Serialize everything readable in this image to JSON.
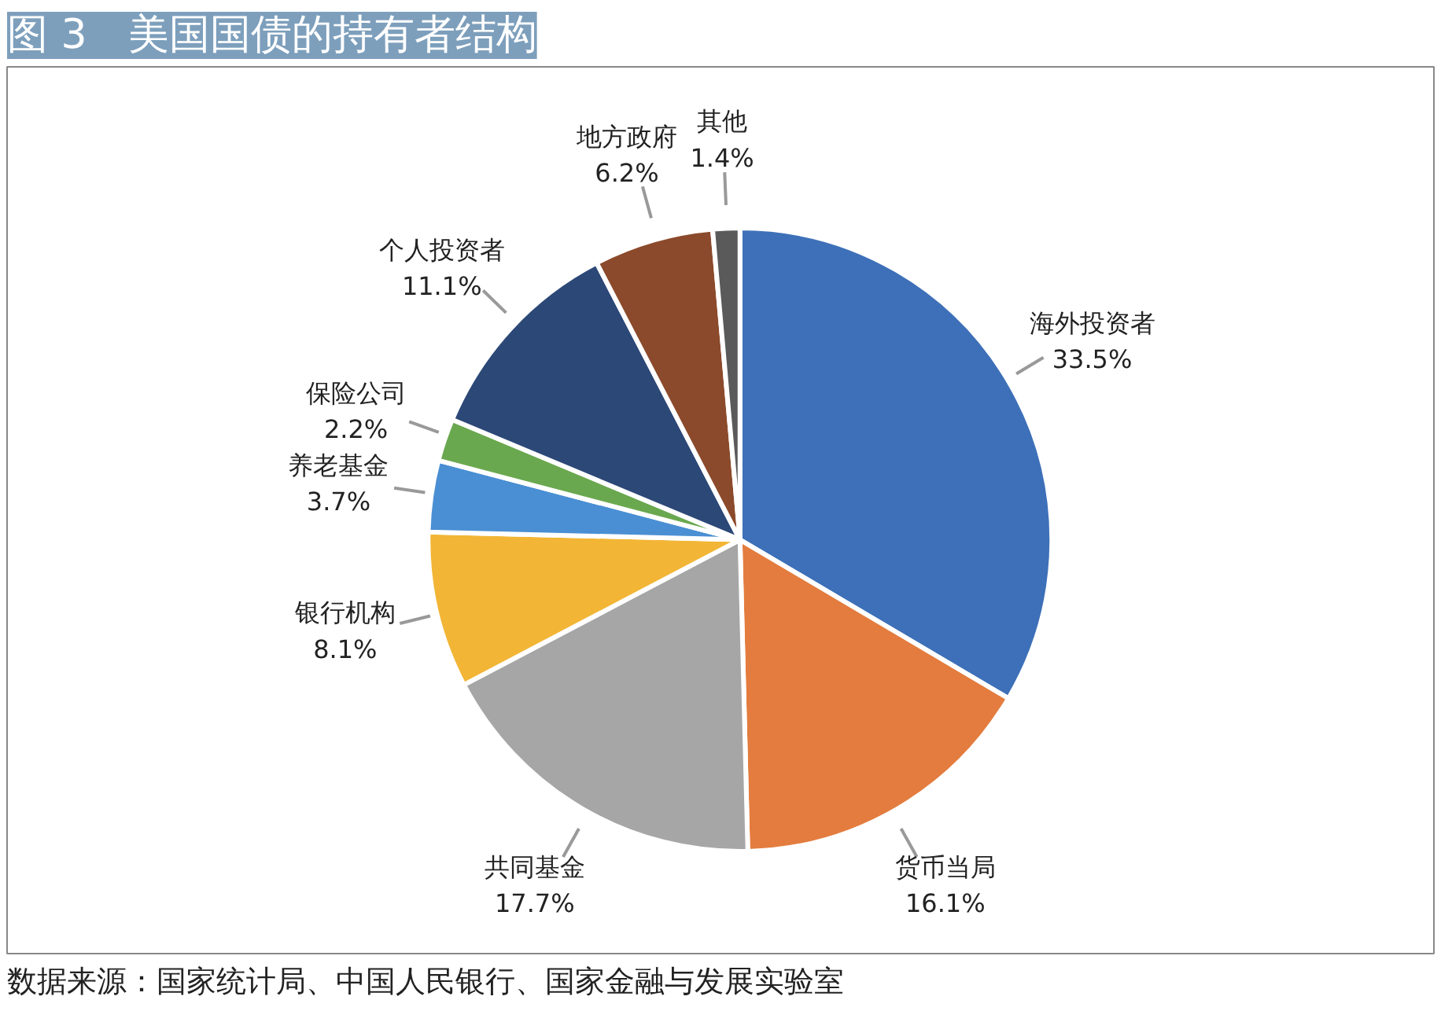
{
  "chart_data": {
    "type": "pie",
    "title": "图 3　美国国债的持有者结构",
    "categories": [
      "海外投资者",
      "货币当局",
      "共同基金",
      "银行机构",
      "养老基金",
      "保险公司",
      "个人投资者",
      "地方政府",
      "其他"
    ],
    "values": [
      33.5,
      16.1,
      17.7,
      8.1,
      3.7,
      2.2,
      11.1,
      6.2,
      1.4
    ],
    "colors": [
      "#3d70b8",
      "#e37c3e",
      "#a6a6a6",
      "#f2b535",
      "#4a8fd3",
      "#6aa84f",
      "#2c4877",
      "#8b4a2b",
      "#5a5a5a"
    ],
    "value_labels": [
      "33.5%",
      "16.1%",
      "17.7%",
      "8.1%",
      "3.7%",
      "2.2%",
      "11.1%",
      "6.2%",
      "1.4%"
    ],
    "annotations": [
      "数据来源：国家统计局、中国人民银行、国家金融与发展实验室"
    ]
  }
}
